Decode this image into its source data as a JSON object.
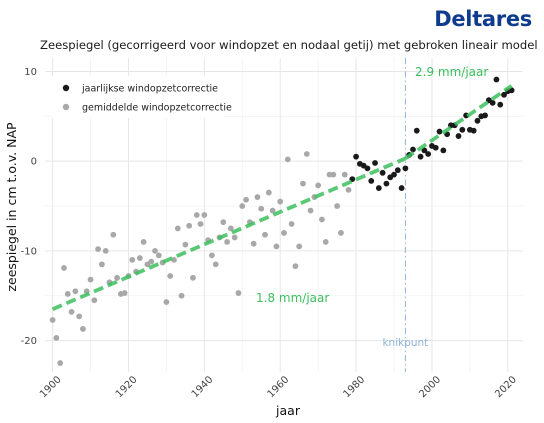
{
  "header": {
    "logo_text": "Deltares",
    "title": "Zeespiegel (gecorrigeerd voor windopzet en nodaal getij) met gebroken lineair model"
  },
  "colors": {
    "trend": "#3cbf5e",
    "adjusted_points": "#1a1a1a",
    "averaged_points": "#a8a8a8",
    "knikpunt": "#8fb5d9",
    "grid": "#e6e6e6",
    "logo": "#0e3b8c"
  },
  "chart_data": {
    "type": "scatter",
    "xlabel": "jaar",
    "ylabel": "zeespiegel in cm t.o.v. NAP",
    "xlim": [
      1898,
      2024
    ],
    "ylim": [
      -23.5,
      11.5
    ],
    "x_ticks": [
      1900,
      1920,
      1940,
      1960,
      1980,
      2000,
      2020
    ],
    "y_ticks": [
      -20,
      -10,
      0,
      10
    ],
    "grid": true,
    "legend_position": "top-left",
    "series": [
      {
        "name": "jaarlijkse windopzetcorrectie",
        "points": [
          [
            1979,
            -2
          ],
          [
            1980,
            0.5
          ],
          [
            1981,
            -0.3
          ],
          [
            1982,
            -0.5
          ],
          [
            1983,
            -0.8
          ],
          [
            1984,
            -2.2
          ],
          [
            1985,
            -0.2
          ],
          [
            1986,
            -3
          ],
          [
            1987,
            -1.3
          ],
          [
            1988,
            -2.5
          ],
          [
            1989,
            -1.8
          ],
          [
            1990,
            -1.5
          ],
          [
            1991,
            -1
          ],
          [
            1992,
            -3
          ],
          [
            1993,
            -0.8
          ],
          [
            1994,
            0.7
          ],
          [
            1995,
            1.3
          ],
          [
            1996,
            3.4
          ],
          [
            1997,
            0.5
          ],
          [
            1998,
            1.2
          ],
          [
            1999,
            0.8
          ],
          [
            2000,
            1.7
          ],
          [
            2001,
            1.5
          ],
          [
            2002,
            3.3
          ],
          [
            2003,
            1.2
          ],
          [
            2004,
            3
          ],
          [
            2005,
            4
          ],
          [
            2006,
            4
          ],
          [
            2007,
            2.8
          ],
          [
            2008,
            3.5
          ],
          [
            2009,
            5.1
          ],
          [
            2010,
            3.5
          ],
          [
            2011,
            3.4
          ],
          [
            2012,
            4.5
          ],
          [
            2013,
            5
          ],
          [
            2014,
            5.1
          ],
          [
            2015,
            6.8
          ],
          [
            2016,
            6.5
          ],
          [
            2017,
            9.1
          ],
          [
            2018,
            6.3
          ],
          [
            2019,
            7.4
          ],
          [
            2020,
            7.8
          ],
          [
            2021,
            7.9
          ]
        ]
      },
      {
        "name": "gemiddelde windopzetcorrectie",
        "points": [
          [
            1900,
            -17.7
          ],
          [
            1901,
            -19.7
          ],
          [
            1902,
            -22.5
          ],
          [
            1903,
            -11.9
          ],
          [
            1904,
            -14.8
          ],
          [
            1905,
            -16.8
          ],
          [
            1906,
            -14.5
          ],
          [
            1907,
            -17.3
          ],
          [
            1908,
            -18.7
          ],
          [
            1909,
            -14.5
          ],
          [
            1910,
            -13.2
          ],
          [
            1911,
            -15.5
          ],
          [
            1912,
            -9.8
          ],
          [
            1913,
            -11.5
          ],
          [
            1914,
            -10
          ],
          [
            1915,
            -13.5
          ],
          [
            1916,
            -8.2
          ],
          [
            1917,
            -13
          ],
          [
            1918,
            -14.8
          ],
          [
            1919,
            -14.7
          ],
          [
            1920,
            -12.8
          ],
          [
            1921,
            -11
          ],
          [
            1922,
            -12.3
          ],
          [
            1923,
            -10.8
          ],
          [
            1924,
            -9
          ],
          [
            1925,
            -11.5
          ],
          [
            1926,
            -11.2
          ],
          [
            1927,
            -10
          ],
          [
            1928,
            -10.5
          ],
          [
            1929,
            -11.3
          ],
          [
            1930,
            -15.7
          ],
          [
            1931,
            -12.8
          ],
          [
            1932,
            -11
          ],
          [
            1933,
            -7.5
          ],
          [
            1934,
            -15
          ],
          [
            1935,
            -9.3
          ],
          [
            1936,
            -7.2
          ],
          [
            1937,
            -13
          ],
          [
            1938,
            -6
          ],
          [
            1939,
            -7
          ],
          [
            1940,
            -6
          ],
          [
            1941,
            -8.8
          ],
          [
            1942,
            -10.5
          ],
          [
            1943,
            -11.5
          ],
          [
            1944,
            -8.5
          ],
          [
            1945,
            -6.8
          ],
          [
            1946,
            -9
          ],
          [
            1947,
            -7.5
          ],
          [
            1948,
            -8.5
          ],
          [
            1949,
            -14.7
          ],
          [
            1950,
            -5
          ],
          [
            1951,
            -4.3
          ],
          [
            1952,
            -6.8
          ],
          [
            1953,
            -9.2
          ],
          [
            1954,
            -4
          ],
          [
            1955,
            -5.3
          ],
          [
            1956,
            -8.2
          ],
          [
            1957,
            -3.5
          ],
          [
            1958,
            -5.5
          ],
          [
            1959,
            -9.5
          ],
          [
            1960,
            -4.5
          ],
          [
            1961,
            -8
          ],
          [
            1962,
            0.2
          ],
          [
            1963,
            -7
          ],
          [
            1964,
            -11.7
          ],
          [
            1965,
            -9.5
          ],
          [
            1966,
            -2.5
          ],
          [
            1967,
            0.8
          ],
          [
            1968,
            -5.5
          ],
          [
            1969,
            -4
          ],
          [
            1970,
            -2.7
          ],
          [
            1971,
            -6.5
          ],
          [
            1972,
            -9
          ],
          [
            1973,
            -1.5
          ],
          [
            1974,
            -1.5
          ],
          [
            1975,
            -5
          ],
          [
            1976,
            -8
          ],
          [
            1977,
            -1.5
          ],
          [
            1978,
            -3.2
          ]
        ]
      }
    ],
    "trend_segments": [
      {
        "label": "1.8 mm/jaar",
        "start": [
          1900,
          -16.5
        ],
        "end": [
          1993,
          0.3
        ]
      },
      {
        "label": "2.9 mm/jaar",
        "start": [
          1993,
          0.3
        ],
        "end": [
          2021,
          8.4
        ]
      }
    ],
    "knikpunt": {
      "label": "knikpunt",
      "year": 1993
    }
  }
}
